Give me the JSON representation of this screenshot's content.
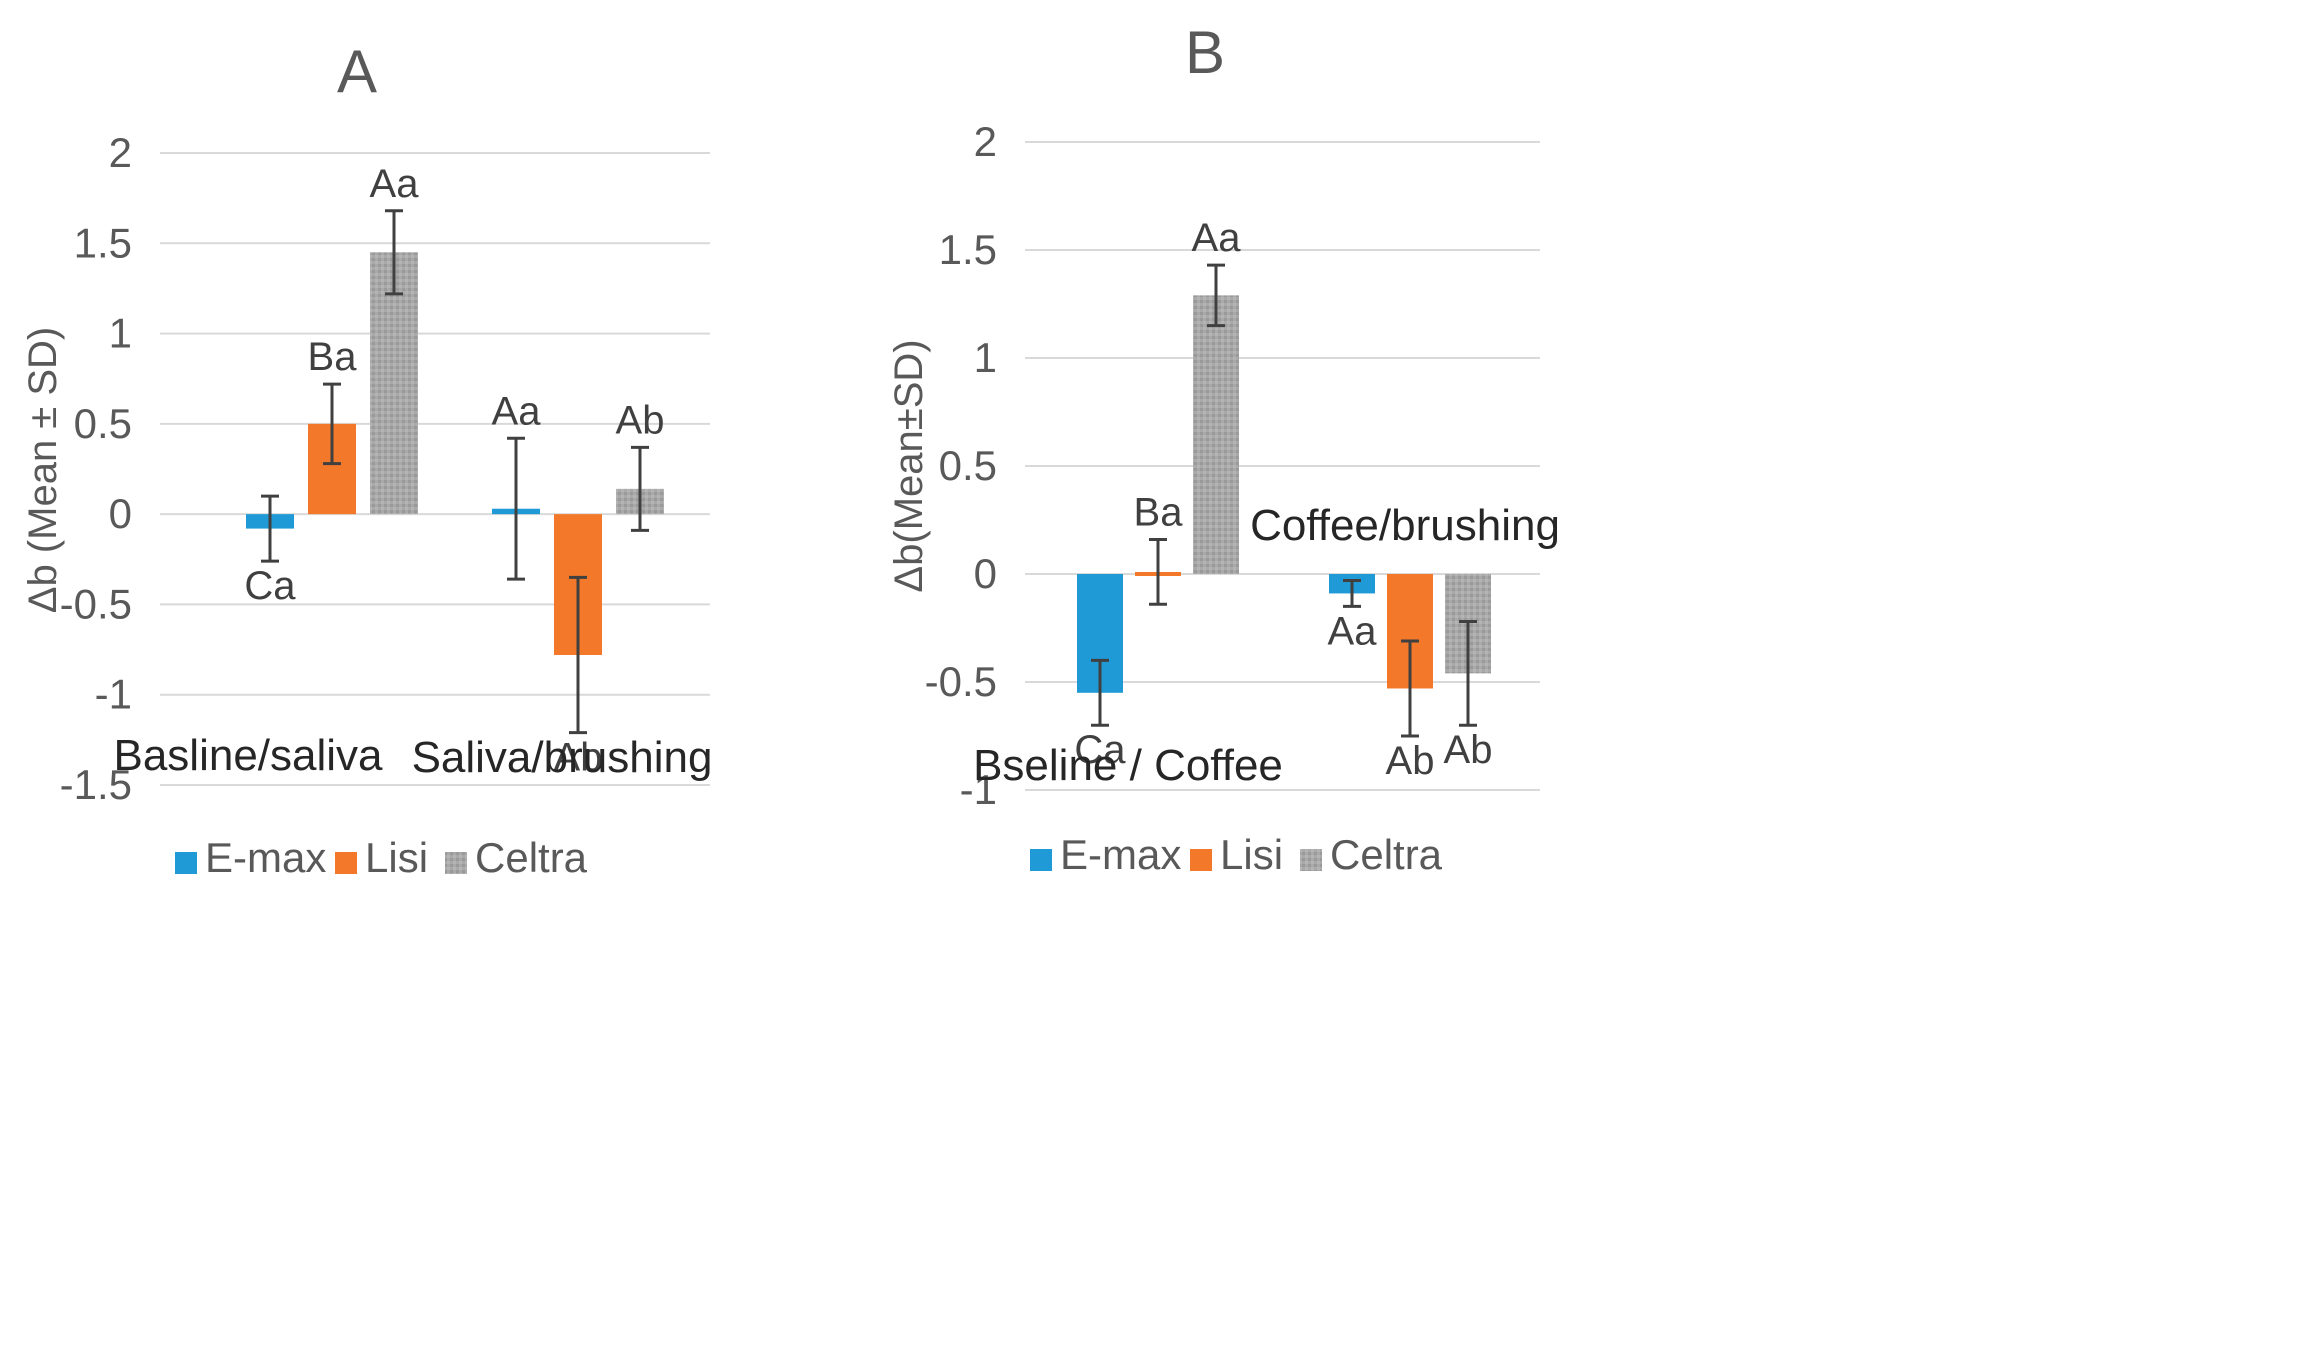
{
  "chart_data": [
    {
      "type": "bar",
      "title": "A",
      "ylabel": "Δb (Mean ± SD)",
      "ylim": [
        -1.5,
        2
      ],
      "yticks": [
        2,
        1.5,
        1,
        0.5,
        0,
        -0.5,
        -1,
        -1.5
      ],
      "ytick_labels": [
        "2",
        "1.5",
        "1",
        "0.5",
        "0",
        "-0.5",
        "-1",
        "-1.5"
      ],
      "categories": [
        "Basline/saliva",
        "Saliva/brushing"
      ],
      "series": [
        {
          "name": "E-max",
          "color": "#1f9ad6",
          "values": [
            -0.08,
            0.03
          ],
          "sd": [
            0.18,
            0.39
          ],
          "labels": [
            "Ca",
            "Aa"
          ]
        },
        {
          "name": "Lisi",
          "color": "#f4782a",
          "values": [
            0.5,
            -0.78
          ],
          "sd": [
            0.22,
            0.43
          ],
          "labels": [
            "Ba",
            "Ab"
          ]
        },
        {
          "name": "Celtra",
          "color": "#a6a6a6",
          "values": [
            1.45,
            0.14
          ],
          "sd": [
            0.23,
            0.23
          ],
          "labels": [
            "Aa",
            "Ab"
          ]
        }
      ],
      "legend": [
        "E-max",
        "Lisi",
        "Celtra"
      ],
      "grid": true
    },
    {
      "type": "bar",
      "title": "B",
      "ylabel": "Δb(Mean±SD)",
      "ylim": [
        -1,
        2
      ],
      "yticks": [
        2,
        1.5,
        1,
        0.5,
        0,
        -0.5,
        -1
      ],
      "ytick_labels": [
        "2",
        "1.5",
        "1",
        "0.5",
        "0",
        "-0.5",
        "-1"
      ],
      "categories": [
        "Bseline / Coffee",
        "Coffee/brushing"
      ],
      "series": [
        {
          "name": "E-max",
          "color": "#1f9ad6",
          "values": [
            -0.55,
            -0.09
          ],
          "sd": [
            0.15,
            0.06
          ],
          "labels": [
            "Ca",
            "Aa"
          ]
        },
        {
          "name": "Lisi",
          "color": "#f4782a",
          "values": [
            0.01,
            -0.53
          ],
          "sd": [
            0.15,
            0.22
          ],
          "labels": [
            "Ba",
            "Ab"
          ]
        },
        {
          "name": "Celtra",
          "color": "#a6a6a6",
          "values": [
            1.29,
            -0.46
          ],
          "sd": [
            0.14,
            0.24
          ],
          "labels": [
            "Aa",
            "Ab"
          ]
        }
      ],
      "legend": [
        "E-max",
        "Lisi",
        "Celtra"
      ],
      "grid": true
    }
  ]
}
